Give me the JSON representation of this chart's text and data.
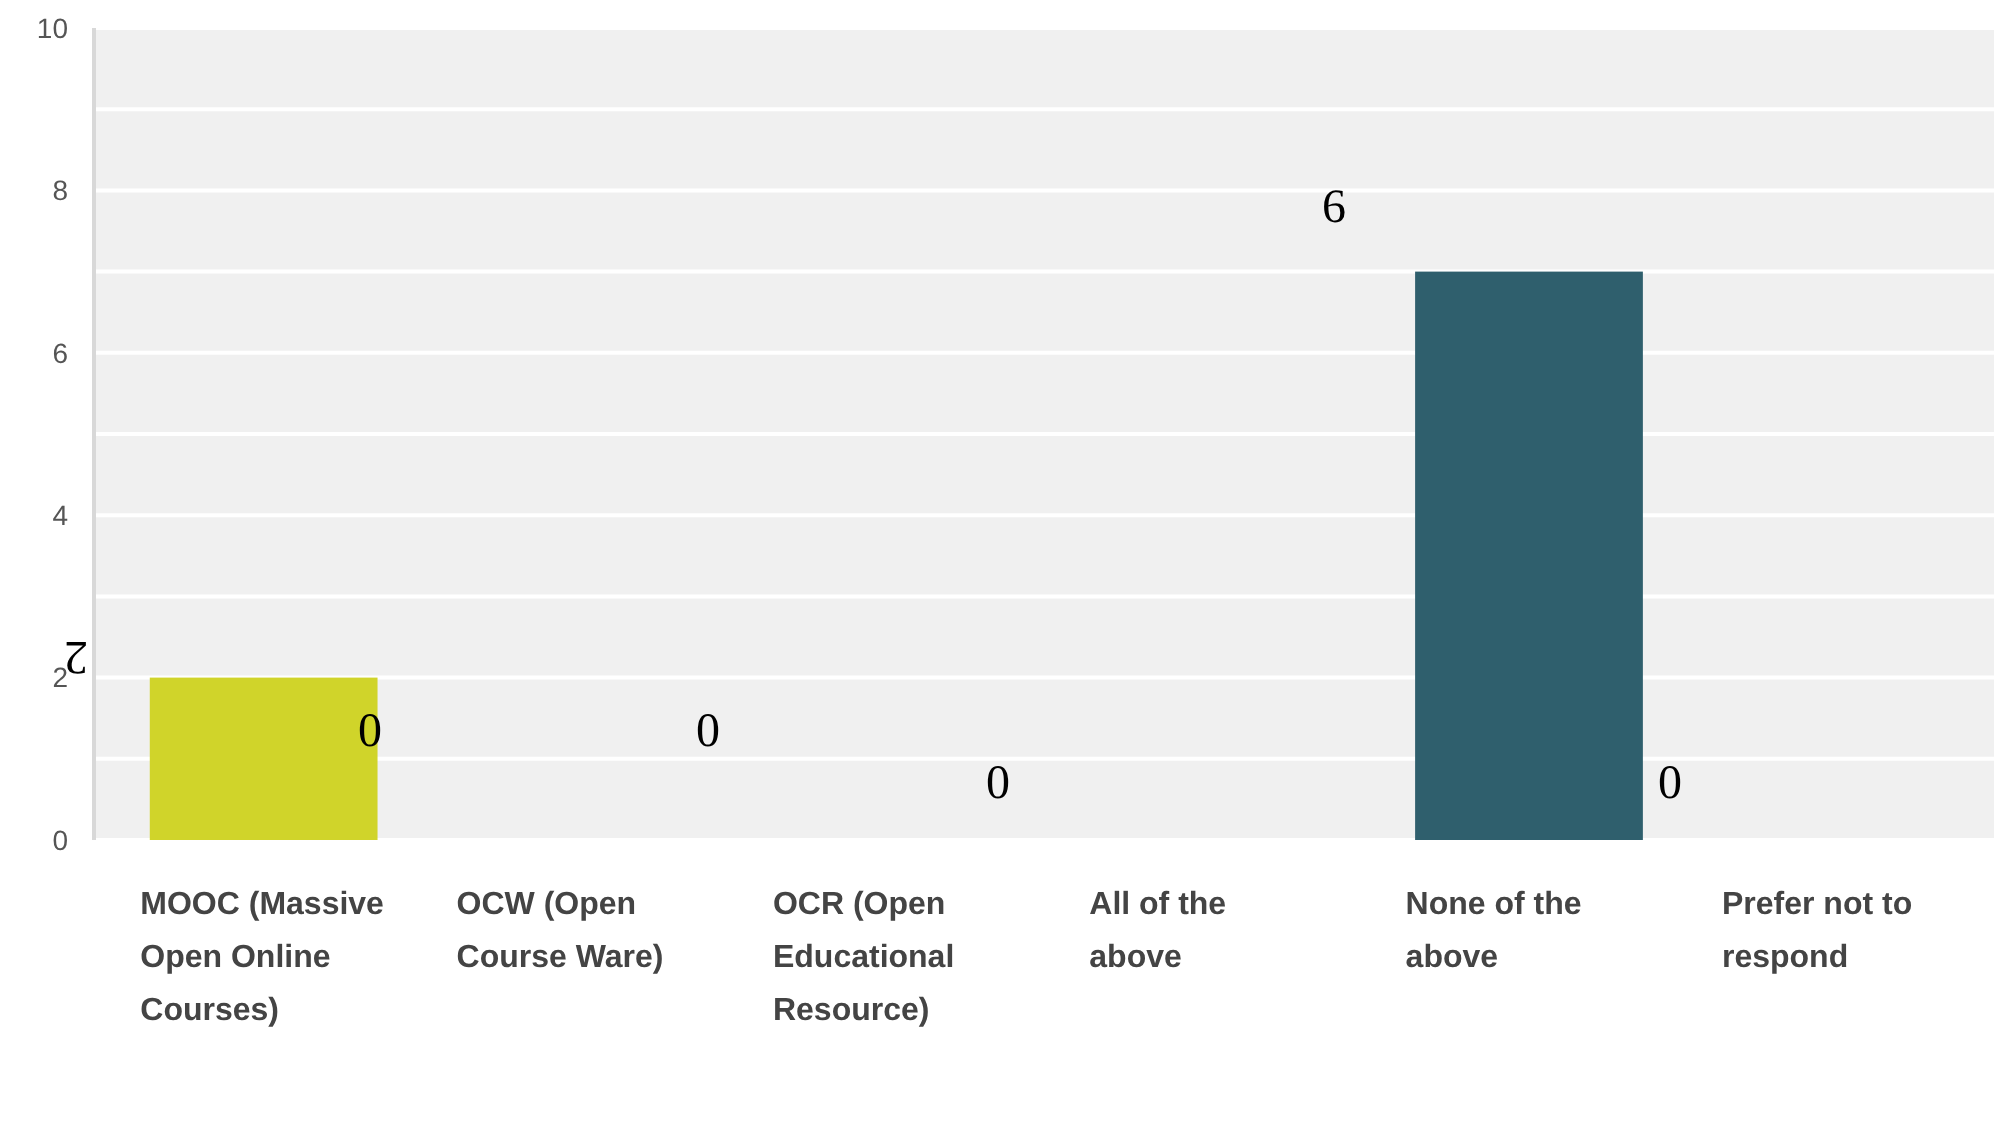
{
  "chart_data": {
    "type": "bar",
    "categories": [
      "MOOC (Massive Open Online Courses)",
      "OCW (Open Course Ware)",
      "OCR (Open Educational Resource)",
      "All of the above",
      "None of the above",
      "Prefer not to respond"
    ],
    "values": [
      2,
      0,
      0,
      0,
      7,
      0
    ],
    "colors": [
      "#d0d42a",
      "#8fb3c9",
      "#e0832b",
      "#9c4a7a",
      "#2f5f6d",
      "#6b8e23"
    ],
    "ylim": [
      0,
      10
    ],
    "yticks": [
      0,
      {
        "value": 1,
        "label": null
      },
      2,
      {
        "value": 3,
        "label": null
      },
      4,
      {
        "value": 5,
        "label": null
      },
      6,
      {
        "value": 7,
        "label": null
      },
      8,
      {
        "value": 9,
        "label": null
      },
      10
    ],
    "grid": true,
    "annotations": [
      "2",
      "0",
      "0",
      "0",
      "6",
      "0"
    ]
  }
}
